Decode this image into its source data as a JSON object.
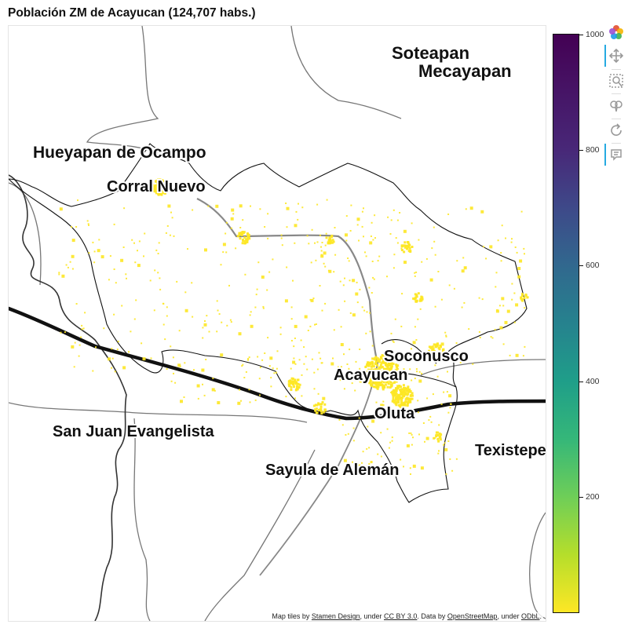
{
  "title": "Población ZM de Acayucan (124,707 habs.)",
  "map": {
    "places": [
      {
        "id": "soteapan",
        "label": "Soteapan"
      },
      {
        "id": "mecayapan",
        "label": "Mecayapan"
      },
      {
        "id": "hueyapan",
        "label": "Hueyapan de Ocampo"
      },
      {
        "id": "corral",
        "label": "Corral Nuevo"
      },
      {
        "id": "soconusco",
        "label": "Soconusco"
      },
      {
        "id": "acayucan",
        "label": "Acayucan"
      },
      {
        "id": "oluta",
        "label": "Oluta"
      },
      {
        "id": "sanjuan",
        "label": "San Juan Evangelista"
      },
      {
        "id": "texistepec",
        "label": "Texistepec"
      },
      {
        "id": "sayula",
        "label": "Sayula de Alemán"
      }
    ],
    "density_color": "#fde725",
    "attribution": {
      "prefix": "Map tiles by ",
      "stamen": "Stamen Design",
      "under1": ", under ",
      "ccby": "CC BY 3.0",
      "data": ". Data by ",
      "osm": "OpenStreetMap",
      "under2": ", under ",
      "odbl": "ODbL",
      "suffix": "."
    }
  },
  "colorbar": {
    "palette": "Viridis",
    "low_color": "#fde725",
    "high_color": "#440154",
    "range": [
      0,
      1000
    ],
    "ticks": [
      {
        "value": 1000,
        "label": "1000"
      },
      {
        "value": 800,
        "label": "800"
      },
      {
        "value": 600,
        "label": "600"
      },
      {
        "value": 400,
        "label": "400"
      },
      {
        "value": 200,
        "label": "200"
      }
    ]
  },
  "toolbar": {
    "tools": [
      {
        "name": "bokeh-logo-icon",
        "active": false
      },
      {
        "name": "pan-tool-icon",
        "active": true
      },
      {
        "name": "box-zoom-tool-icon",
        "active": false
      },
      {
        "name": "wheel-zoom-tool-icon",
        "active": false
      },
      {
        "name": "reset-tool-icon",
        "active": false
      },
      {
        "name": "hover-tool-icon",
        "active": true
      }
    ]
  }
}
